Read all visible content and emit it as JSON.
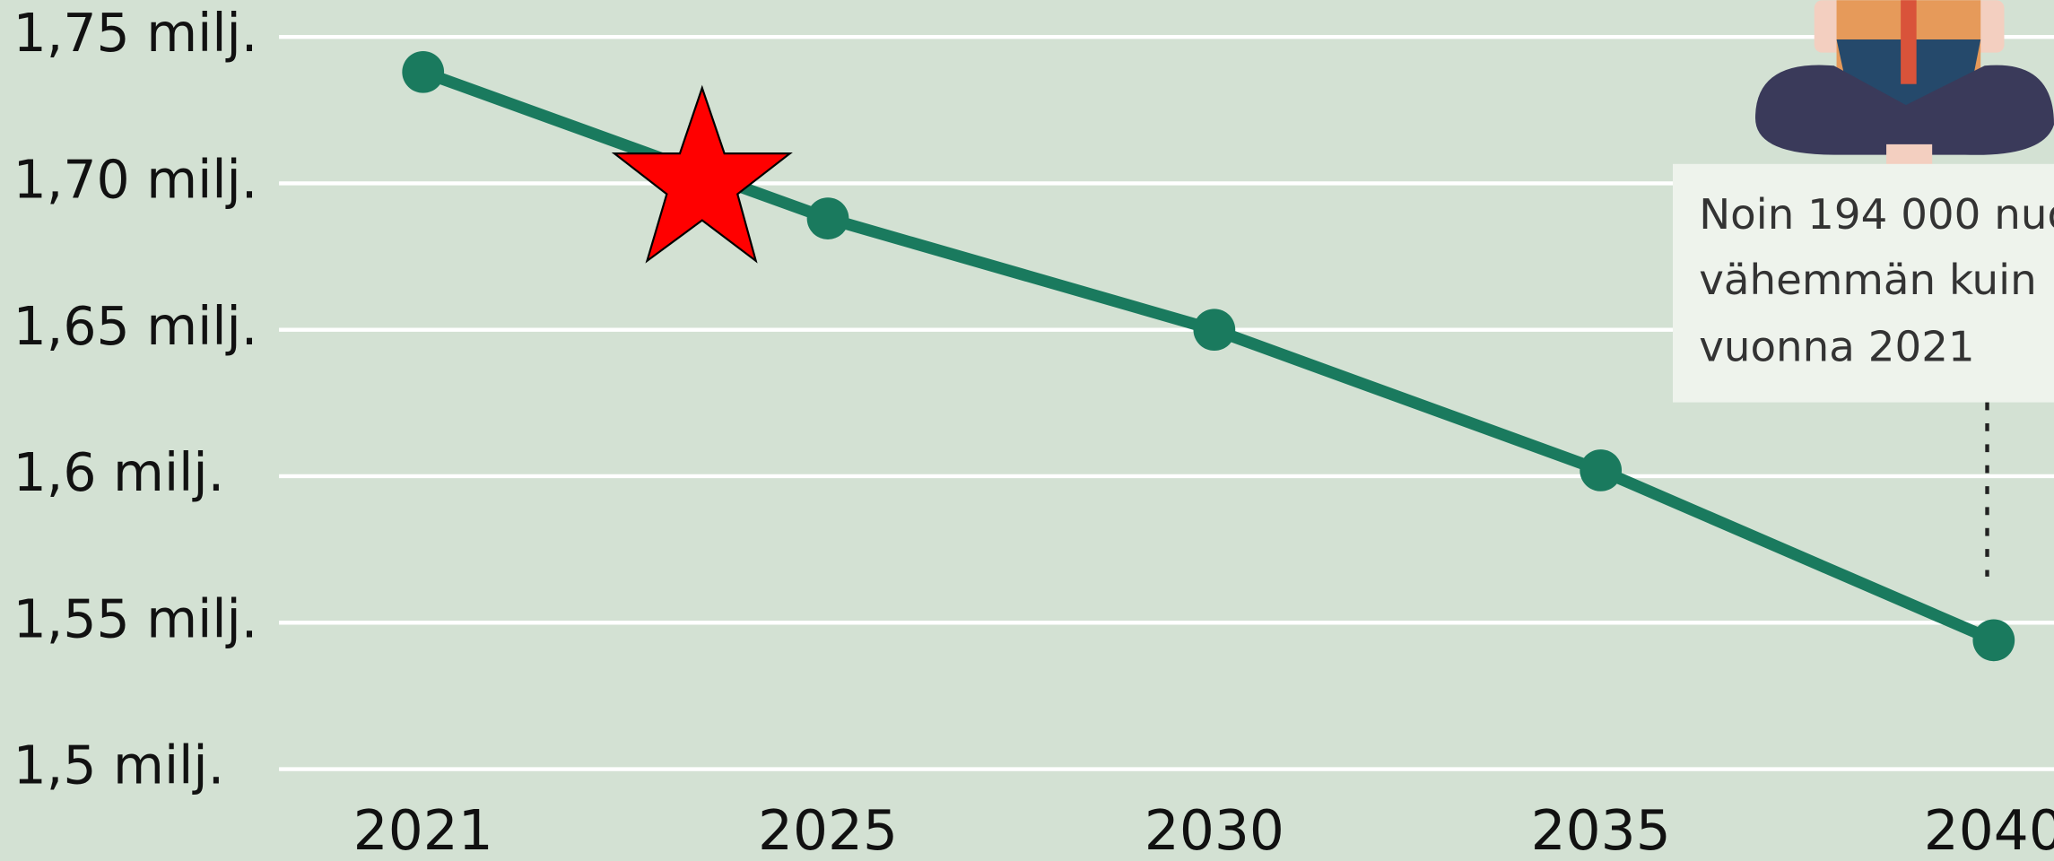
{
  "chart_data": {
    "type": "line",
    "categories": [
      "2021",
      "2025",
      "2030",
      "2035",
      "2040"
    ],
    "series": [
      {
        "name": null,
        "color": "#1a7a5e",
        "values": [
          1.738,
          1.688,
          1.65,
          1.602,
          1.544
        ]
      }
    ],
    "ylim": [
      1.5,
      1.75
    ],
    "yticks": [
      {
        "value": 1.5,
        "label": "1,5 milj."
      },
      {
        "value": 1.55,
        "label": "1,55 milj."
      },
      {
        "value": 1.6,
        "label": "1,6 milj."
      },
      {
        "value": 1.65,
        "label": "1,65 milj."
      },
      {
        "value": 1.7,
        "label": "1,70 milj."
      },
      {
        "value": 1.75,
        "label": "1,75 milj."
      }
    ],
    "grid": true,
    "annotation": [
      "Noin 194 000 nuo",
      "vähemmän kuin",
      "vuonna 2021"
    ]
  }
}
